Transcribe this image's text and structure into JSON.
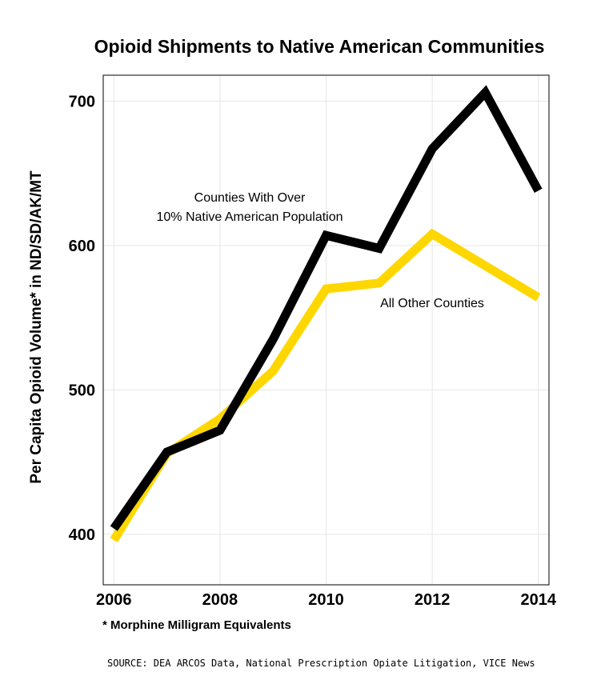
{
  "chart_data": {
    "type": "line",
    "title": "Opioid Shipments to Native American Communities",
    "ylabel": "Per Capita Opioid Volume* in ND/SD/AK/MT",
    "xlabel": "",
    "x": [
      2006,
      2007,
      2008,
      2009,
      2010,
      2011,
      2012,
      2013,
      2014
    ],
    "xticks": [
      "2006",
      "2008",
      "2010",
      "2012",
      "2014"
    ],
    "yticks": [
      "400",
      "500",
      "600",
      "700"
    ],
    "xlim": [
      2005.8,
      2014.2
    ],
    "ylim": [
      365,
      718
    ],
    "grid": true,
    "series": [
      {
        "name": "All Other Counties",
        "color": "#ffd700",
        "values": [
          396,
          456,
          480,
          513,
          570,
          574,
          608,
          586,
          564
        ]
      },
      {
        "name": "Counties With Over 10% Native American Population",
        "color": "#000000",
        "values": [
          404,
          457,
          472,
          535,
          607,
          598,
          667,
          706,
          638
        ]
      }
    ],
    "annotations": [
      {
        "lines": [
          "Counties With Over",
          "10% Native American Population"
        ]
      },
      {
        "lines": [
          "All Other Counties"
        ]
      }
    ]
  },
  "footnote": "* Morphine Milligram Equivalents",
  "source": "SOURCE: DEA ARCOS Data, National Prescription Opiate Litigation, VICE News"
}
